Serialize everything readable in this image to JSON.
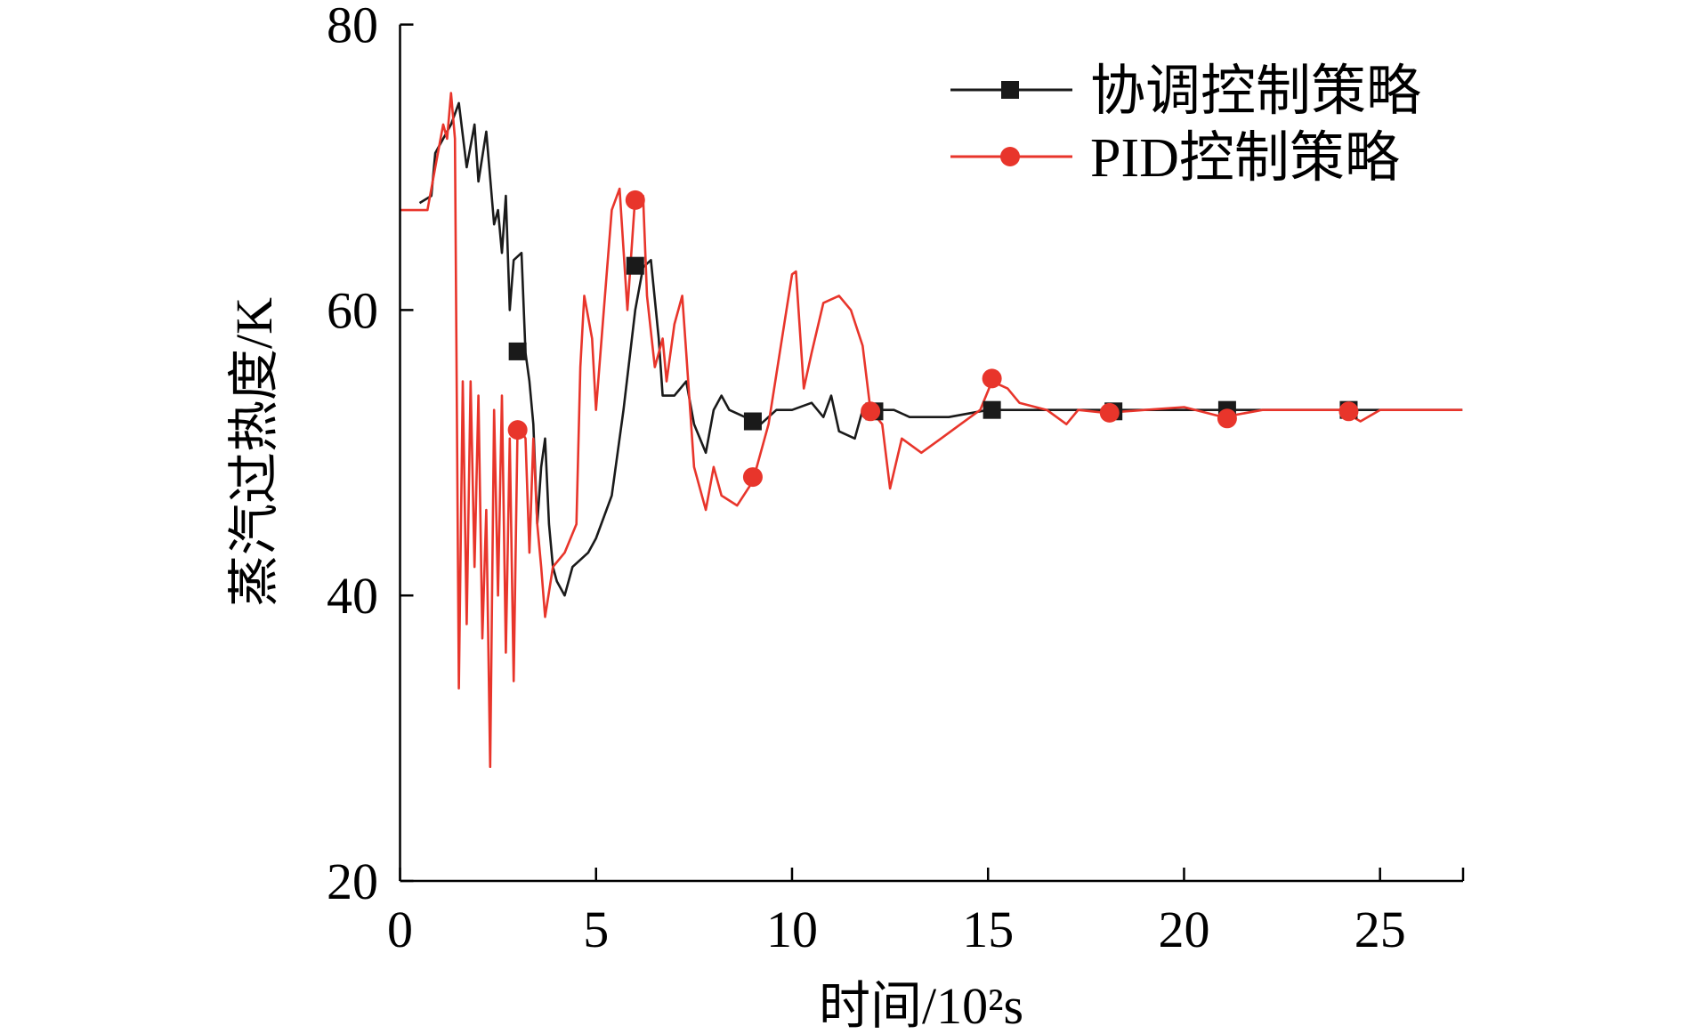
{
  "chart_data": {
    "type": "line",
    "title": "",
    "xlabel": "时间/10²s",
    "ylabel": "蒸汽过热度/K",
    "xlim": [
      0,
      27.1
    ],
    "ylim": [
      20,
      80
    ],
    "xticks": [
      0,
      5,
      10,
      15,
      20,
      25
    ],
    "yticks": [
      20,
      40,
      60,
      80
    ],
    "xtick_labels": [
      "0",
      "5",
      "10",
      "15",
      "20",
      "25"
    ],
    "ytick_labels": [
      "20",
      "40",
      "60",
      "80"
    ],
    "grid": false,
    "legend_placement": "top-right",
    "series": [
      {
        "name": "协调控制策略",
        "color": "#1a1a1a",
        "marker": "square",
        "x": [
          0.5,
          0.8,
          0.9,
          1.1,
          1.3,
          1.5,
          1.7,
          1.9,
          2.0,
          2.2,
          2.4,
          2.5,
          2.6,
          2.7,
          2.8,
          2.9,
          3.1,
          3.2,
          3.3,
          3.4,
          3.5,
          3.6,
          3.7,
          3.8,
          3.9,
          4.0,
          4.2,
          4.4,
          4.8,
          5.0,
          5.4,
          5.7,
          6.0,
          6.2,
          6.4,
          6.6,
          6.7,
          7.0,
          7.3,
          7.5,
          7.8,
          8.0,
          8.2,
          8.4,
          8.8,
          9.2,
          9.6,
          10.0,
          10.5,
          10.8,
          11.0,
          11.2,
          11.6,
          11.8,
          12.2,
          12.6,
          13.0,
          14.0,
          15.0,
          16.0,
          18.0,
          21.0,
          24.0,
          27.1
        ],
        "y": [
          67.5,
          68,
          71,
          72,
          73,
          74.5,
          70,
          73,
          69,
          72.5,
          66,
          67,
          64,
          68,
          60,
          63.5,
          64,
          57,
          55,
          52,
          45,
          49,
          51,
          45,
          42,
          41,
          40,
          42,
          43,
          44,
          47,
          53,
          60,
          63,
          63.5,
          58,
          54,
          54,
          55,
          52,
          50,
          53,
          54,
          53,
          52.5,
          52,
          53,
          53,
          53.5,
          52.5,
          54,
          51.5,
          51,
          53,
          53,
          53,
          52.5,
          52.5,
          53,
          53,
          53,
          53,
          53,
          53
        ],
        "marker_x": [
          3.0,
          6.0,
          9.0,
          12.1,
          15.1,
          18.2,
          21.1,
          24.2
        ],
        "marker_y": [
          57.1,
          63.1,
          52.2,
          52.9,
          53.0,
          52.9,
          53.0,
          53.0
        ]
      },
      {
        "name": "PID控制策略",
        "color": "#e8352b",
        "marker": "circle",
        "x": [
          0,
          0.7,
          0.9,
          1.1,
          1.2,
          1.3,
          1.4,
          1.5,
          1.6,
          1.7,
          1.8,
          1.9,
          2.0,
          2.1,
          2.2,
          2.3,
          2.4,
          2.5,
          2.6,
          2.7,
          2.8,
          2.9,
          3.0,
          3.2,
          3.3,
          3.4,
          3.5,
          3.6,
          3.7,
          3.9,
          4.2,
          4.5,
          4.6,
          4.7,
          4.9,
          5.0,
          5.2,
          5.4,
          5.6,
          5.8,
          6.0,
          6.2,
          6.3,
          6.5,
          6.7,
          6.8,
          7.0,
          7.2,
          7.3,
          7.5,
          7.8,
          8.0,
          8.2,
          8.6,
          9.0,
          9.4,
          9.8,
          10.0,
          10.1,
          10.3,
          10.5,
          10.8,
          11.2,
          11.5,
          11.8,
          12.0,
          12.3,
          12.5,
          12.8,
          13.3,
          13.8,
          14.3,
          14.8,
          15.1,
          15.5,
          15.8,
          16.5,
          17.0,
          17.3,
          18.0,
          19.0,
          20.0,
          21.0,
          22.0,
          24.0,
          24.5,
          25.0,
          27.1
        ],
        "y": [
          67,
          67,
          70,
          73,
          72,
          75.2,
          72,
          33.5,
          55,
          38,
          55,
          42,
          54,
          37,
          46,
          28,
          53,
          40,
          54,
          36,
          51,
          34,
          52,
          51,
          43,
          51,
          45,
          42,
          38.5,
          42,
          43,
          45,
          56,
          61,
          58,
          53,
          60,
          67,
          68.5,
          60,
          68,
          68,
          61,
          56,
          58,
          55,
          59,
          61,
          57,
          49,
          46,
          49,
          47,
          46.3,
          48,
          52,
          59,
          62.5,
          62.7,
          54.5,
          57,
          60.5,
          61,
          60,
          57.5,
          53,
          52,
          47.5,
          51,
          50,
          51,
          52,
          53,
          55,
          54.5,
          53.5,
          53,
          52,
          53,
          52.8,
          53,
          53.2,
          52.5,
          53,
          53,
          52.2,
          53,
          53
        ],
        "marker_x": [
          3.0,
          6.0,
          9.0,
          12.0,
          15.1,
          18.1,
          21.1,
          24.2
        ],
        "marker_y": [
          51.6,
          67.7,
          48.3,
          52.9,
          55.2,
          52.8,
          52.4,
          52.9
        ]
      }
    ]
  }
}
